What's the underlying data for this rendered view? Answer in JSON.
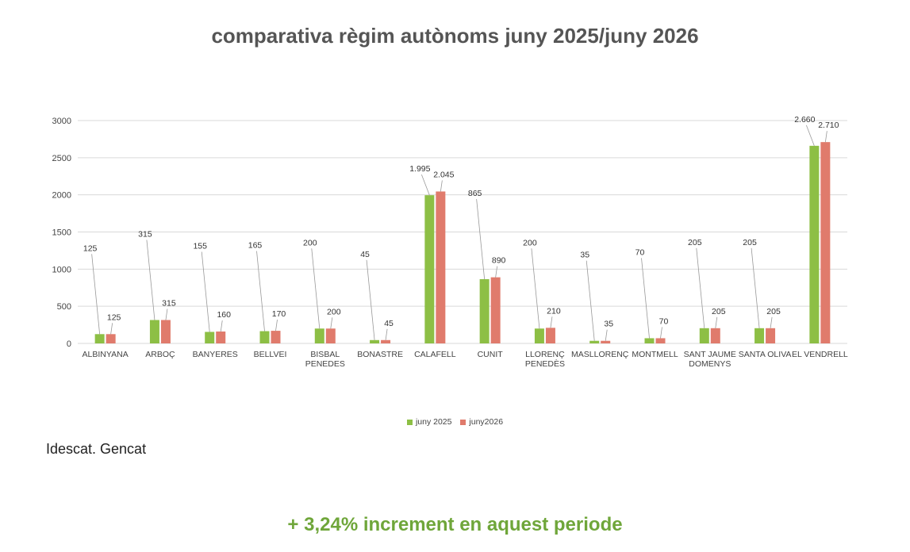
{
  "source": "Idescat. Gencat",
  "footer": "+ 3,24% increment en aquest periode",
  "colors": {
    "series1": "#8dbf45",
    "series2": "#e07b6c",
    "grid": "#d9d9d9"
  },
  "chart_data": {
    "type": "bar",
    "title": "comparativa règim autònoms juny 2025/juny 2026",
    "ylim": [
      0,
      3000
    ],
    "yticks": [
      0,
      500,
      1000,
      1500,
      2000,
      2500,
      3000
    ],
    "grid": true,
    "legend_position": "bottom",
    "categories": [
      [
        "ALBINYANA"
      ],
      [
        "ARBOÇ"
      ],
      [
        "BANYERES"
      ],
      [
        "BELLVEI"
      ],
      [
        "BISBAL",
        "PENEDES"
      ],
      [
        "BONASTRE"
      ],
      [
        "CALAFELL"
      ],
      [
        "CUNIT"
      ],
      [
        "LLORENÇ",
        "PENEDÈS"
      ],
      [
        "MASLLORENÇ"
      ],
      [
        "MONTMELL"
      ],
      [
        "SANT JAUME",
        "DOMENYS"
      ],
      [
        "SANTA OLIVA"
      ],
      [
        "EL VENDRELL"
      ]
    ],
    "series": [
      {
        "name": "juny 2025",
        "values": [
          125,
          315,
          155,
          165,
          200,
          45,
          1995,
          865,
          200,
          35,
          70,
          205,
          205,
          2660
        ],
        "labels": [
          "125",
          "315",
          "155",
          "165",
          "200",
          "45",
          "1.995",
          "865",
          "200",
          "35",
          "70",
          "205",
          "205",
          "2.660"
        ]
      },
      {
        "name": "juny2026",
        "values": [
          125,
          315,
          160,
          170,
          200,
          45,
          2045,
          890,
          210,
          35,
          70,
          205,
          205,
          2710
        ],
        "labels": [
          "125",
          "315",
          "160",
          "170",
          "200",
          "45",
          "2.045",
          "890",
          "210",
          "35",
          "70",
          "205",
          "205",
          "2.710"
        ]
      }
    ]
  }
}
